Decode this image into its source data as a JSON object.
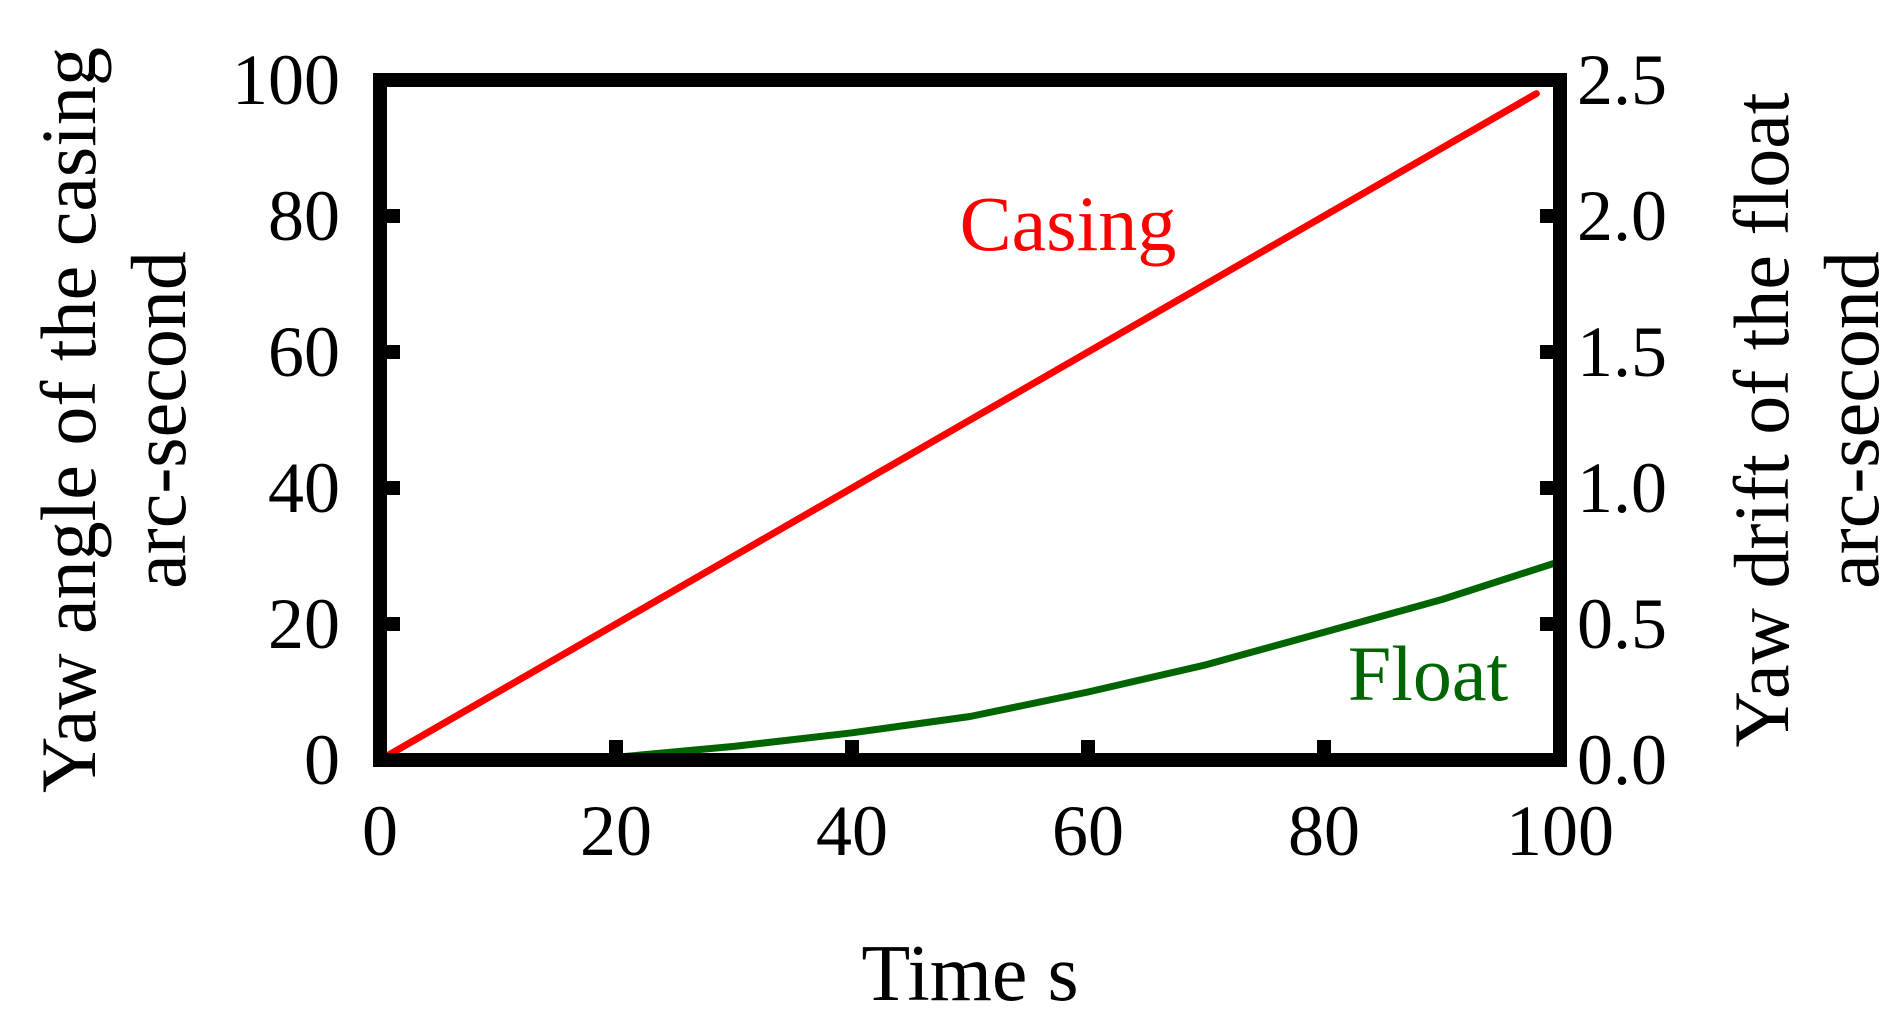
{
  "chart_data": {
    "type": "line",
    "xlabel": "Time s",
    "ylabel_left": [
      "Yaw angle of the casing",
      "arc-second"
    ],
    "ylabel_right": [
      "Yaw drift of the float",
      "arc-second"
    ],
    "xlim": [
      0,
      100
    ],
    "ylim_left": [
      0,
      100
    ],
    "ylim_right": [
      0,
      2.5
    ],
    "xticks": [
      "0",
      "20",
      "40",
      "60",
      "80",
      "100"
    ],
    "xtick_values": [
      0,
      20,
      40,
      60,
      80,
      100
    ],
    "yticks_left": [
      "0",
      "20",
      "40",
      "60",
      "80",
      "100"
    ],
    "ytick_values_left": [
      0,
      20,
      40,
      60,
      80,
      100
    ],
    "yticks_right": [
      "0.0",
      "0.5",
      "1.0",
      "1.5",
      "2.0",
      "2.5"
    ],
    "ytick_values_right": [
      0,
      0.5,
      1.0,
      1.5,
      2.0,
      2.5
    ],
    "grid": false,
    "series": [
      {
        "name": "Casing",
        "axis": "left",
        "color": "#ff0000",
        "x": [
          0,
          10,
          20,
          30,
          40,
          50,
          60,
          70,
          80,
          90,
          98
        ],
        "y": [
          0,
          10,
          20,
          30,
          40,
          50,
          60,
          70,
          80,
          90,
          98
        ]
      },
      {
        "name": "Float",
        "axis": "right",
        "color": "#006400",
        "x": [
          17,
          20,
          30,
          40,
          50,
          60,
          70,
          80,
          90,
          100
        ],
        "y": [
          0.0,
          0.01,
          0.05,
          0.1,
          0.16,
          0.25,
          0.35,
          0.47,
          0.59,
          0.73
        ]
      }
    ]
  }
}
